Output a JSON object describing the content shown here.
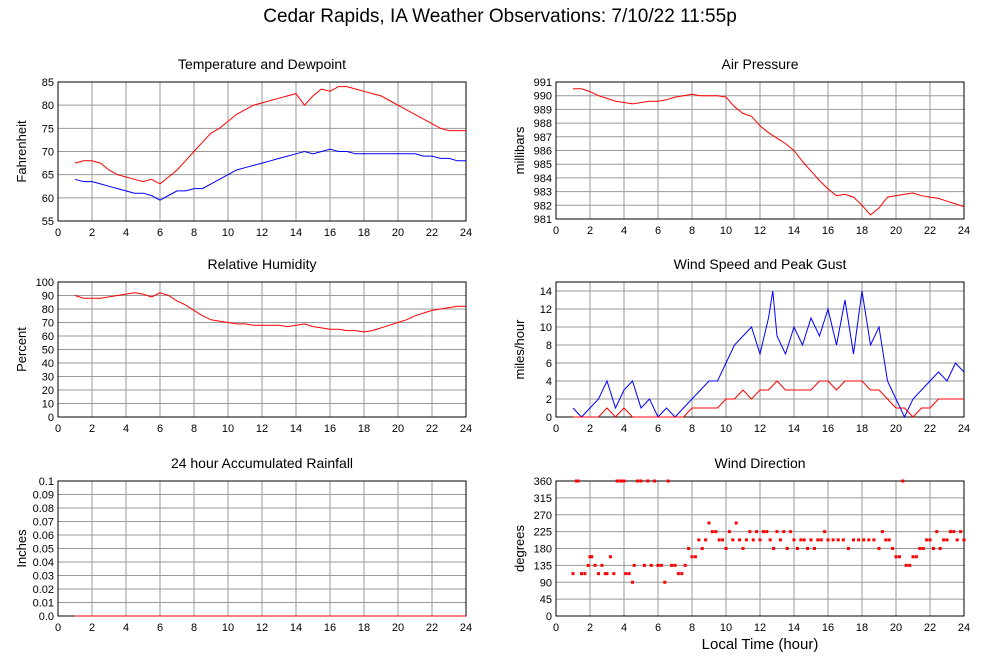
{
  "page_title": "Cedar Rapids, IA Weather Observations: 7/10/22 11:55p",
  "x_axis_caption": "Local Time (hour)",
  "colors": {
    "red": "#ff0000",
    "blue": "#0000ff",
    "grid": "#999999"
  },
  "chart_data": [
    {
      "id": "temp",
      "type": "line",
      "title": "Temperature and Dewpoint",
      "ylabel": "Fahrenheit",
      "xlabel": "",
      "xlim": [
        0,
        24
      ],
      "x_ticks": [
        2,
        4,
        6,
        8,
        10,
        12,
        14,
        16,
        18,
        20,
        22,
        24
      ],
      "ylim": [
        55,
        85
      ],
      "y_ticks": [
        55,
        60,
        65,
        70,
        75,
        80,
        85
      ],
      "grid": true,
      "series": [
        {
          "color": "#ff0000",
          "x": [
            1,
            1.5,
            2,
            2.5,
            3,
            3.5,
            4,
            4.5,
            5,
            5.5,
            6,
            6.5,
            7,
            7.5,
            8,
            8.5,
            9,
            9.5,
            10,
            10.5,
            11,
            11.5,
            12,
            12.5,
            13,
            13.5,
            14,
            14.5,
            15,
            15.5,
            16,
            16.5,
            17,
            17.5,
            18,
            18.5,
            19,
            19.5,
            20,
            20.5,
            21,
            21.5,
            22,
            22.5,
            23,
            23.5,
            24
          ],
          "y": [
            67.5,
            68,
            68,
            67.5,
            66,
            65,
            64.5,
            64,
            63.5,
            64,
            63,
            64.5,
            66,
            68,
            70,
            72,
            74,
            75,
            76.5,
            78,
            79,
            80,
            80.5,
            81,
            81.5,
            82,
            82.5,
            80,
            82,
            83.5,
            83,
            84,
            84,
            83.5,
            83,
            82.5,
            82,
            81,
            80,
            79,
            78,
            77,
            76,
            75,
            74.5,
            74.5,
            74.5
          ]
        },
        {
          "color": "#0000ff",
          "x": [
            1,
            1.5,
            2,
            2.5,
            3,
            3.5,
            4,
            4.5,
            5,
            5.5,
            6,
            6.5,
            7,
            7.5,
            8,
            8.5,
            9,
            9.5,
            10,
            10.5,
            11,
            11.5,
            12,
            12.5,
            13,
            13.5,
            14,
            14.5,
            15,
            15.5,
            16,
            16.5,
            17,
            17.5,
            18,
            18.5,
            19,
            19.5,
            20,
            20.5,
            21,
            21.5,
            22,
            22.5,
            23,
            23.5,
            24
          ],
          "y": [
            64,
            63.5,
            63.5,
            63,
            62.5,
            62,
            61.5,
            61,
            61,
            60.5,
            59.5,
            60.5,
            61.5,
            61.5,
            62,
            62,
            63,
            64,
            65,
            66,
            66.5,
            67,
            67.5,
            68,
            68.5,
            69,
            69.5,
            70,
            69.5,
            70,
            70.5,
            70,
            70,
            69.5,
            69.5,
            69.5,
            69.5,
            69.5,
            69.5,
            69.5,
            69.5,
            69,
            69,
            68.5,
            68.5,
            68,
            68
          ]
        }
      ]
    },
    {
      "id": "pressure",
      "type": "line",
      "title": "Air Pressure",
      "ylabel": "millibars",
      "xlabel": "",
      "xlim": [
        0,
        24
      ],
      "x_ticks": [
        2,
        4,
        6,
        8,
        10,
        12,
        14,
        16,
        18,
        20,
        22,
        24
      ],
      "ylim": [
        981,
        991
      ],
      "y_ticks": [
        981,
        982,
        983,
        984,
        985,
        986,
        987,
        988,
        989,
        990,
        991
      ],
      "grid": true,
      "series": [
        {
          "color": "#ff0000",
          "x": [
            1,
            1.5,
            2,
            2.5,
            3,
            3.5,
            4,
            4.5,
            5,
            5.5,
            6,
            6.5,
            7,
            7.5,
            8,
            8.5,
            9,
            9.5,
            10,
            10.5,
            11,
            11.5,
            12,
            12.5,
            13,
            13.5,
            14,
            14.5,
            15,
            15.5,
            16,
            16.5,
            17,
            17.5,
            18,
            18.5,
            19,
            19.5,
            20,
            20.5,
            21,
            21.5,
            22,
            22.5,
            23,
            23.5,
            24
          ],
          "y": [
            990.5,
            990.5,
            990.3,
            990,
            989.8,
            989.6,
            989.5,
            989.4,
            989.5,
            989.6,
            989.6,
            989.7,
            989.9,
            990,
            990.1,
            990,
            990,
            990,
            989.9,
            989.2,
            988.7,
            988.5,
            987.8,
            987.3,
            986.9,
            986.5,
            986,
            985.2,
            984.5,
            983.8,
            983.2,
            982.7,
            982.8,
            982.6,
            982,
            981.3,
            981.8,
            982.6,
            982.7,
            982.8,
            982.9,
            982.7,
            982.6,
            982.5,
            982.3,
            982.1,
            981.9
          ]
        }
      ]
    },
    {
      "id": "humidity",
      "type": "line",
      "title": "Relative Humidity",
      "ylabel": "Percent",
      "xlabel": "",
      "xlim": [
        0,
        24
      ],
      "x_ticks": [
        2,
        4,
        6,
        8,
        10,
        12,
        14,
        16,
        18,
        20,
        22,
        24
      ],
      "ylim": [
        0,
        100
      ],
      "y_ticks": [
        0,
        10,
        20,
        30,
        40,
        50,
        60,
        70,
        80,
        90,
        100
      ],
      "grid": true,
      "series": [
        {
          "color": "#ff0000",
          "x": [
            1,
            1.5,
            2,
            2.5,
            3,
            3.5,
            4,
            4.5,
            5,
            5.5,
            6,
            6.5,
            7,
            7.5,
            8,
            8.5,
            9,
            9.5,
            10,
            10.5,
            11,
            11.5,
            12,
            12.5,
            13,
            13.5,
            14,
            14.5,
            15,
            15.5,
            16,
            16.5,
            17,
            17.5,
            18,
            18.5,
            19,
            19.5,
            20,
            20.5,
            21,
            21.5,
            22,
            22.5,
            23,
            23.5,
            24
          ],
          "y": [
            90,
            88,
            88,
            88,
            89,
            90,
            91,
            92,
            91,
            89,
            92,
            90,
            86,
            83,
            79,
            75,
            72,
            71,
            70,
            69,
            69,
            68,
            68,
            68,
            68,
            67,
            68,
            69,
            67,
            66,
            65,
            65,
            64,
            64,
            63,
            64,
            66,
            68,
            70,
            72,
            75,
            77,
            79,
            80,
            81,
            82,
            82
          ]
        }
      ]
    },
    {
      "id": "wind",
      "type": "line",
      "title": "Wind Speed and Peak Gust",
      "ylabel": "miles/hour",
      "xlabel": "",
      "xlim": [
        0,
        24
      ],
      "x_ticks": [
        2,
        4,
        6,
        8,
        10,
        12,
        14,
        16,
        18,
        20,
        22,
        24
      ],
      "ylim": [
        0,
        15
      ],
      "y_ticks": [
        0,
        2,
        4,
        6,
        8,
        10,
        12,
        14
      ],
      "grid": true,
      "series": [
        {
          "color": "#0000ff",
          "x": [
            1,
            1.5,
            2,
            2.5,
            3,
            3.5,
            4,
            4.5,
            5,
            5.5,
            6,
            6.5,
            7,
            7.5,
            8,
            8.5,
            9,
            9.5,
            10,
            10.5,
            11,
            11.5,
            12,
            12.5,
            12.75,
            13,
            13.5,
            14,
            14.5,
            15,
            15.5,
            16,
            16.5,
            17,
            17.5,
            18,
            18.5,
            19,
            19.5,
            20,
            20.5,
            21,
            21.5,
            22,
            22.5,
            23,
            23.5,
            24
          ],
          "y": [
            1,
            0,
            1,
            2,
            4,
            1,
            3,
            4,
            1,
            2,
            0,
            1,
            0,
            1,
            2,
            3,
            4,
            4,
            6,
            8,
            9,
            10,
            7,
            11,
            14,
            9,
            7,
            10,
            8,
            11,
            9,
            12,
            8,
            13,
            7,
            14,
            8,
            10,
            4,
            2,
            0,
            2,
            3,
            4,
            5,
            4,
            6,
            5
          ]
        },
        {
          "color": "#ff0000",
          "x": [
            1,
            1.5,
            2,
            2.5,
            3,
            3.5,
            4,
            4.5,
            5,
            5.5,
            6,
            6.5,
            7,
            7.5,
            8,
            8.5,
            9,
            9.5,
            10,
            10.5,
            11,
            11.5,
            12,
            12.5,
            13,
            13.5,
            14,
            14.5,
            15,
            15.5,
            16,
            16.5,
            17,
            17.5,
            18,
            18.5,
            19,
            19.5,
            20,
            20.5,
            21,
            21.5,
            22,
            22.5,
            23,
            23.5,
            24
          ],
          "y": [
            0,
            0,
            0,
            0,
            1,
            0,
            1,
            0,
            0,
            0,
            0,
            0,
            0,
            0,
            1,
            1,
            1,
            1,
            2,
            2,
            3,
            2,
            3,
            3,
            4,
            3,
            3,
            3,
            3,
            4,
            4,
            3,
            4,
            4,
            4,
            3,
            3,
            2,
            1,
            1,
            0,
            1,
            1,
            2,
            2,
            2,
            2
          ]
        }
      ]
    },
    {
      "id": "rain",
      "type": "line",
      "title": "24 hour Accumulated Rainfall",
      "ylabel": "Inches",
      "xlabel": "",
      "xlim": [
        0,
        24
      ],
      "x_ticks": [
        2,
        4,
        6,
        8,
        10,
        12,
        14,
        16,
        18,
        20,
        22,
        24
      ],
      "ylim": [
        0,
        0.1
      ],
      "y_ticks": [
        0.0,
        0.01,
        0.02,
        0.03,
        0.04,
        0.05,
        0.06,
        0.07,
        0.08,
        0.09,
        0.1
      ],
      "y_tick_labels": [
        "0.0",
        "0.01",
        "0.02",
        "0.03",
        "0.04",
        "0.05",
        "0.06",
        "0.07",
        "0.08",
        "0.09",
        "0.1"
      ],
      "grid": true,
      "series": [
        {
          "color": "#ff0000",
          "x": [
            1,
            24
          ],
          "y": [
            0,
            0
          ]
        }
      ]
    },
    {
      "id": "direction",
      "type": "scatter",
      "title": "Wind Direction",
      "ylabel": "degrees",
      "xlabel": "Local Time (hour)",
      "xlim": [
        0,
        24
      ],
      "x_ticks": [
        2,
        4,
        6,
        8,
        10,
        12,
        14,
        16,
        18,
        20,
        22,
        24
      ],
      "ylim": [
        0,
        360
      ],
      "y_ticks": [
        0,
        45,
        90,
        135,
        180,
        225,
        270,
        315,
        360
      ],
      "grid": true,
      "series": [
        {
          "color": "#ff0000",
          "x": [
            1,
            1.2,
            1.3,
            1.5,
            1.7,
            1.9,
            2.0,
            2.1,
            2.3,
            2.5,
            2.7,
            2.9,
            3.0,
            3.2,
            3.4,
            3.6,
            3.8,
            3.9,
            4.0,
            4.1,
            4.3,
            4.5,
            4.6,
            4.8,
            5.0,
            5.2,
            5.4,
            5.6,
            5.8,
            6.0,
            6.2,
            6.4,
            6.6,
            6.8,
            7.0,
            7.2,
            7.4,
            7.6,
            7.8,
            8.0,
            8.2,
            8.4,
            8.6,
            8.8,
            9.0,
            9.2,
            9.4,
            9.6,
            9.8,
            10.0,
            10.2,
            10.4,
            10.6,
            10.8,
            11.0,
            11.2,
            11.4,
            11.6,
            11.8,
            12.0,
            12.2,
            12.4,
            12.6,
            12.8,
            13.0,
            13.2,
            13.4,
            13.6,
            13.8,
            14.0,
            14.2,
            14.4,
            14.6,
            14.8,
            15.0,
            15.2,
            15.4,
            15.6,
            15.8,
            16.0,
            16.3,
            16.6,
            16.9,
            17.2,
            17.5,
            17.8,
            18.1,
            18.4,
            18.7,
            19.0,
            19.2,
            19.4,
            19.6,
            19.8,
            20.0,
            20.2,
            20.4,
            20.6,
            20.8,
            21.0,
            21.2,
            21.4,
            21.6,
            21.8,
            22.0,
            22.2,
            22.4,
            22.6,
            22.8,
            23.0,
            23.2,
            23.4,
            23.6,
            23.8,
            24.0
          ],
          "y": [
            113,
            360,
            360,
            113,
            113,
            135,
            158,
            158,
            135,
            113,
            135,
            113,
            113,
            158,
            113,
            360,
            360,
            360,
            360,
            113,
            113,
            90,
            135,
            360,
            360,
            135,
            360,
            135,
            360,
            135,
            135,
            90,
            360,
            135,
            135,
            113,
            113,
            135,
            180,
            158,
            158,
            203,
            180,
            203,
            248,
            225,
            225,
            203,
            203,
            180,
            225,
            203,
            248,
            203,
            180,
            203,
            225,
            203,
            225,
            203,
            225,
            225,
            203,
            180,
            225,
            203,
            225,
            180,
            225,
            203,
            180,
            203,
            203,
            180,
            203,
            180,
            203,
            203,
            225,
            203,
            203,
            203,
            203,
            180,
            203,
            203,
            203,
            203,
            203,
            180,
            225,
            203,
            203,
            180,
            158,
            158,
            360,
            135,
            135,
            158,
            158,
            180,
            180,
            203,
            203,
            180,
            225,
            180,
            203,
            203,
            225,
            225,
            203,
            225,
            203
          ]
        }
      ]
    }
  ]
}
